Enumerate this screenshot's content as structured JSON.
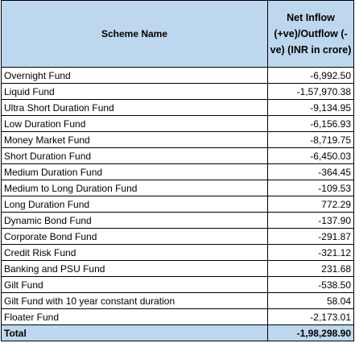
{
  "table": {
    "headers": {
      "scheme": "Scheme Name",
      "net_inflow": "Net Inflow (+ve)/Outflow (-ve) (INR in crore)"
    },
    "rows": [
      {
        "name": "Overnight Fund",
        "value": "-6,992.50"
      },
      {
        "name": "Liquid Fund",
        "value": "-1,57,970.38"
      },
      {
        "name": "Ultra Short Duration Fund",
        "value": "-9,134.95"
      },
      {
        "name": "Low Duration Fund",
        "value": "-6,156.93"
      },
      {
        "name": "Money Market Fund",
        "value": "-8,719.75"
      },
      {
        "name": "Short Duration Fund",
        "value": "-6,450.03"
      },
      {
        "name": "Medium Duration Fund",
        "value": "-364.45"
      },
      {
        "name": "Medium to Long Duration Fund",
        "value": "-109.53"
      },
      {
        "name": "Long Duration Fund",
        "value": "772.29"
      },
      {
        "name": "Dynamic Bond Fund",
        "value": "-137.90"
      },
      {
        "name": "Corporate Bond Fund",
        "value": "-291.87"
      },
      {
        "name": "Credit Risk Fund",
        "value": "-321.12"
      },
      {
        "name": "Banking and PSU Fund",
        "value": "231.68"
      },
      {
        "name": "Gilt Fund",
        "value": "-538.50"
      },
      {
        "name": "Gilt Fund with 10 year constant duration",
        "value": "58.04"
      },
      {
        "name": "Floater Fund",
        "value": "-2,173.01"
      }
    ],
    "total": {
      "name": "Total",
      "value": "-1,98,298.90"
    }
  },
  "colors": {
    "header_fill": "#bdd7ee",
    "border": "#000000"
  }
}
